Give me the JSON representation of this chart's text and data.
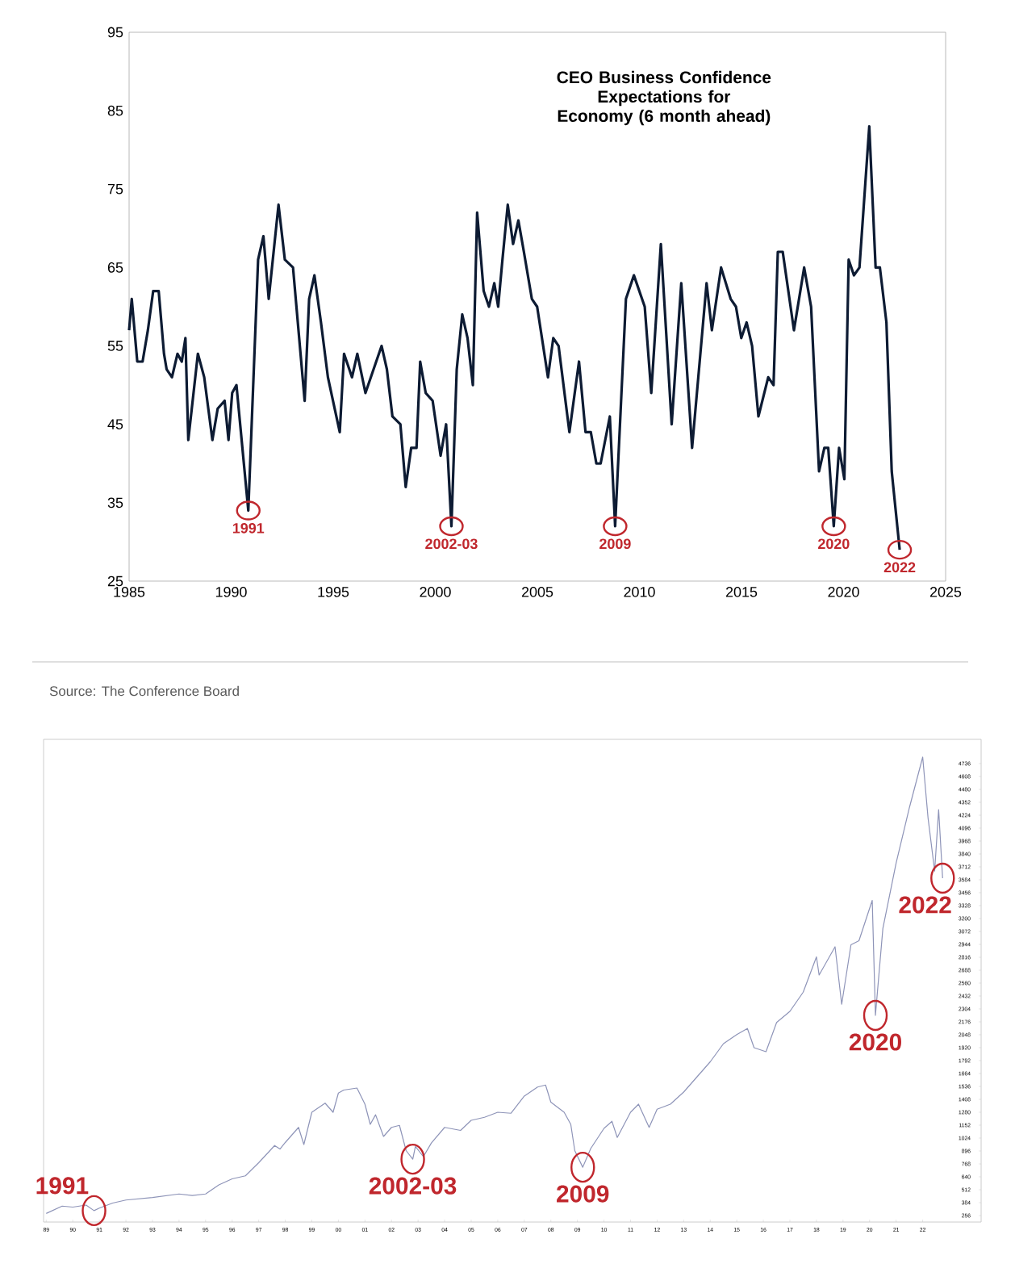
{
  "chart_data": [
    {
      "type": "line",
      "title": "CEO Business Confidence Expectations for Economy (6 month ahead)",
      "x": [
        1985.0,
        1985.13,
        1985.4,
        1985.66,
        1985.92,
        1986.18,
        1986.45,
        1986.71,
        1986.84,
        1987.1,
        1987.37,
        1987.58,
        1987.76,
        1987.9,
        1988.37,
        1988.68,
        1989.08,
        1989.34,
        1989.68,
        1989.87,
        1990.05,
        1990.26,
        1990.84,
        1991.32,
        1991.58,
        1991.84,
        1992.32,
        1992.63,
        1993.03,
        1993.6,
        1993.82,
        1994.08,
        1994.4,
        1994.74,
        1995.32,
        1995.53,
        1995.92,
        1996.18,
        1996.58,
        1997.37,
        1997.63,
        1997.9,
        1998.29,
        1998.55,
        1998.82,
        1999.08,
        1999.26,
        1999.53,
        1999.87,
        2000.26,
        2000.53,
        2000.79,
        2001.05,
        2001.32,
        2001.58,
        2001.84,
        2002.05,
        2002.37,
        2002.63,
        2002.89,
        2003.08,
        2003.29,
        2003.55,
        2003.81,
        2004.07,
        2004.34,
        2004.73,
        2004.99,
        2005.52,
        2005.78,
        2006.04,
        2006.57,
        2007.04,
        2007.36,
        2007.62,
        2007.89,
        2008.1,
        2008.55,
        2008.81,
        2009.34,
        2009.73,
        2010.26,
        2010.58,
        2011.05,
        2011.58,
        2012.05,
        2012.58,
        2013.29,
        2013.55,
        2014.0,
        2014.47,
        2014.73,
        2014.99,
        2015.25,
        2015.52,
        2015.83,
        2016.31,
        2016.57,
        2016.78,
        2017.02,
        2017.57,
        2018.07,
        2018.41,
        2018.8,
        2019.06,
        2019.25,
        2019.52,
        2019.78,
        2020.04,
        2020.25,
        2020.51,
        2020.78,
        2021.26,
        2021.57,
        2021.78,
        2022.1,
        2022.36,
        2022.75
      ],
      "series": [
        {
          "color": "#0d1b33",
          "values": [
            57,
            61,
            53,
            53,
            57,
            62,
            62,
            54,
            52,
            51,
            54,
            53,
            56,
            43,
            54,
            51,
            43,
            47,
            48,
            43,
            49,
            50,
            34,
            66,
            69,
            61,
            73,
            66,
            65,
            48,
            61,
            64,
            58,
            51,
            44,
            54,
            51,
            54,
            49,
            55,
            52,
            46,
            45,
            37,
            42,
            42,
            53,
            49,
            48,
            41,
            45,
            32,
            52,
            59,
            56,
            50,
            72,
            62,
            60,
            63,
            60,
            66,
            73,
            68,
            71,
            67,
            61,
            60,
            51,
            56,
            55,
            44,
            53,
            44,
            44,
            40,
            40,
            46,
            32,
            61,
            64,
            60,
            49,
            68,
            45,
            63,
            42,
            63,
            57,
            65,
            61,
            60,
            56,
            58,
            55,
            46,
            51,
            50,
            67,
            67,
            57,
            65,
            60,
            39,
            42,
            42,
            32,
            42,
            38,
            66,
            64,
            65,
            83,
            65,
            65,
            58,
            39,
            29
          ]
        }
      ],
      "xlim": [
        1985,
        2025
      ],
      "ylim": [
        25,
        95
      ],
      "xticks": [
        1985,
        1990,
        1995,
        2000,
        2005,
        2010,
        2015,
        2020,
        2025
      ],
      "yticks": [
        25,
        35,
        45,
        55,
        65,
        75,
        85,
        95
      ],
      "annotations": [
        {
          "text": "1991",
          "x": 1990.84,
          "y": 34
        },
        {
          "text": "2002-03",
          "x": 2000.79,
          "y": 32
        },
        {
          "text": "2009",
          "x": 2008.81,
          "y": 32
        },
        {
          "text": "2020",
          "x": 2019.52,
          "y": 32
        },
        {
          "text": "2022",
          "x": 2022.75,
          "y": 29
        },
        "Source: The Conference Board"
      ]
    },
    {
      "type": "line",
      "x": [
        1989.0,
        1989.6,
        1990.0,
        1990.5,
        1990.8,
        1991.0,
        1991.5,
        1992.0,
        1993.0,
        1994.0,
        1994.5,
        1995.0,
        1995.5,
        1996.0,
        1996.5,
        1997.0,
        1997.6,
        1997.8,
        1998.0,
        1998.5,
        1998.7,
        1999.0,
        1999.5,
        1999.8,
        2000.0,
        2000.2,
        2000.7,
        2001.0,
        2001.2,
        2001.4,
        2001.7,
        2002.0,
        2002.3,
        2002.55,
        2002.8,
        2002.9,
        2003.2,
        2003.5,
        2004.0,
        2004.6,
        2005.0,
        2005.5,
        2006.0,
        2006.5,
        2007.0,
        2007.5,
        2007.8,
        2008.0,
        2008.5,
        2008.75,
        2008.9,
        2009.2,
        2009.5,
        2010.0,
        2010.3,
        2010.5,
        2011.0,
        2011.3,
        2011.7,
        2012.0,
        2012.5,
        2013.0,
        2013.5,
        2014.0,
        2014.5,
        2015.0,
        2015.4,
        2015.65,
        2016.1,
        2016.5,
        2017.0,
        2017.5,
        2018.0,
        2018.1,
        2018.7,
        2018.95,
        2019.3,
        2019.6,
        2020.1,
        2020.22,
        2020.5,
        2020.7,
        2021.0,
        2021.5,
        2022.0,
        2022.2,
        2022.45,
        2022.6,
        2022.75
      ],
      "series": [
        {
          "color": "#8e94b8",
          "values": [
            277,
            350,
            340,
            360,
            305,
            330,
            380,
            410,
            435,
            470,
            455,
            470,
            560,
            620,
            650,
            780,
            950,
            915,
            980,
            1130,
            960,
            1280,
            1370,
            1280,
            1470,
            1500,
            1520,
            1360,
            1160,
            1255,
            1040,
            1130,
            1150,
            900,
            815,
            940,
            840,
            975,
            1130,
            1100,
            1200,
            1230,
            1280,
            1270,
            1440,
            1530,
            1550,
            1380,
            1280,
            1160,
            900,
            735,
            920,
            1120,
            1190,
            1030,
            1280,
            1360,
            1130,
            1310,
            1360,
            1480,
            1630,
            1780,
            1960,
            2050,
            2110,
            1920,
            1880,
            2170,
            2280,
            2470,
            2820,
            2640,
            2920,
            2350,
            2940,
            2980,
            3380,
            2240,
            3100,
            3360,
            3750,
            4300,
            4800,
            4200,
            3670,
            4280,
            3600
          ]
        }
      ],
      "xlim": [
        1988.9,
        2024.2
      ],
      "ylim": [
        192,
        4976
      ],
      "xticks": [
        {
          "value": 1989,
          "label": "89"
        },
        {
          "value": 1990,
          "label": "90"
        },
        {
          "value": 1991,
          "label": "91"
        },
        {
          "value": 1992,
          "label": "92"
        },
        {
          "value": 1993,
          "label": "93"
        },
        {
          "value": 1994,
          "label": "94"
        },
        {
          "value": 1995,
          "label": "95"
        },
        {
          "value": 1996,
          "label": "96"
        },
        {
          "value": 1997,
          "label": "97"
        },
        {
          "value": 1998,
          "label": "98"
        },
        {
          "value": 1999,
          "label": "99"
        },
        {
          "value": 2000,
          "label": "00"
        },
        {
          "value": 2001,
          "label": "01"
        },
        {
          "value": 2002,
          "label": "02"
        },
        {
          "value": 2003,
          "label": "03"
        },
        {
          "value": 2004,
          "label": "04"
        },
        {
          "value": 2005,
          "label": "05"
        },
        {
          "value": 2006,
          "label": "06"
        },
        {
          "value": 2007,
          "label": "07"
        },
        {
          "value": 2008,
          "label": "08"
        },
        {
          "value": 2009,
          "label": "09"
        },
        {
          "value": 2010,
          "label": "10"
        },
        {
          "value": 2011,
          "label": "11"
        },
        {
          "value": 2012,
          "label": "12"
        },
        {
          "value": 2013,
          "label": "13"
        },
        {
          "value": 2014,
          "label": "14"
        },
        {
          "value": 2015,
          "label": "15"
        },
        {
          "value": 2016,
          "label": "16"
        },
        {
          "value": 2017,
          "label": "17"
        },
        {
          "value": 2018,
          "label": "18"
        },
        {
          "value": 2019,
          "label": "19"
        },
        {
          "value": 2020,
          "label": "20"
        },
        {
          "value": 2021,
          "label": "21"
        },
        {
          "value": 2022,
          "label": "22"
        }
      ],
      "yticks": [
        256,
        384,
        512,
        640,
        768,
        896,
        1024,
        1152,
        1280,
        1408,
        1536,
        1664,
        1792,
        1920,
        2048,
        2176,
        2304,
        2432,
        2560,
        2688,
        2816,
        2944,
        3072,
        3200,
        3328,
        3456,
        3584,
        3712,
        3840,
        3968,
        4096,
        4224,
        4352,
        4480,
        4608,
        4736
      ],
      "annotations": [
        {
          "text": "1991",
          "x": 1990.8,
          "y": 305
        },
        {
          "text": "2002-03",
          "x": 2002.8,
          "y": 815
        },
        {
          "text": "2009",
          "x": 2009.2,
          "y": 735
        },
        {
          "text": "2020",
          "x": 2020.22,
          "y": 2240
        },
        {
          "text": "2022",
          "x": 2022.75,
          "y": 3600
        }
      ]
    }
  ]
}
